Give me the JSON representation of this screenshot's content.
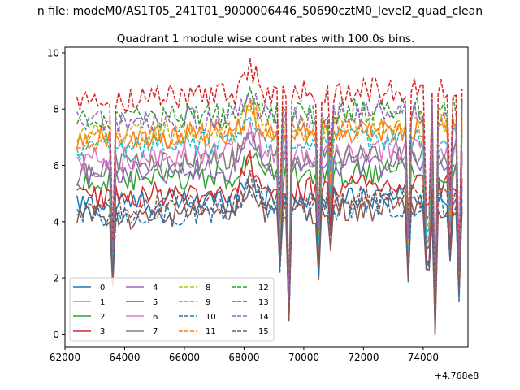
{
  "chart_data": {
    "type": "line",
    "suptitle": "n file: modeM0/AS1T05_241T01_9000006446_50690cztM0_level2_quad_clean",
    "title": "Quadrant 1 module wise count rates with 100.0s bins.",
    "xlabel": "",
    "ylabel": "",
    "x_offset_label": "+4.768e8",
    "xlim": [
      62000,
      75500
    ],
    "ylim": [
      -0.45,
      10.2
    ],
    "x_ticks": [
      62000,
      64000,
      66000,
      68000,
      70000,
      72000,
      74000
    ],
    "x_tick_labels": [
      "62000",
      "64000",
      "66000",
      "68000",
      "70000",
      "72000",
      "74000"
    ],
    "y_ticks": [
      0,
      2,
      4,
      6,
      8,
      10
    ],
    "y_tick_labels": [
      "0",
      "2",
      "4",
      "6",
      "8",
      "10"
    ],
    "x_start": 62400,
    "x_step": 100,
    "legend_position": "lower-left",
    "legend_columns": 4,
    "colors": [
      "#1f77b4",
      "#ff7f0e",
      "#2ca02c",
      "#d62728",
      "#9467bd",
      "#8c564b",
      "#e377c2",
      "#7f7f7f",
      "#bcbd22",
      "#17becf"
    ],
    "dips": [
      {
        "x": 63600,
        "depth": 0.4
      },
      {
        "x": 69200,
        "depth": 0.55
      },
      {
        "x": 69500,
        "depth": 0.12
      },
      {
        "x": 70500,
        "depth": 0.5
      },
      {
        "x": 70900,
        "depth": 0.75
      },
      {
        "x": 73500,
        "depth": 0.45
      },
      {
        "x": 74150,
        "depth": 0.55
      },
      {
        "x": 74400,
        "depth": 0.02
      },
      {
        "x": 74900,
        "depth": 0.6
      },
      {
        "x": 75200,
        "depth": 0.3
      }
    ],
    "series": [
      {
        "name": "0",
        "dashed": false,
        "level": 4.6
      },
      {
        "name": "1",
        "dashed": false,
        "level": 6.9
      },
      {
        "name": "2",
        "dashed": false,
        "level": 5.4
      },
      {
        "name": "3",
        "dashed": false,
        "level": 4.9
      },
      {
        "name": "4",
        "dashed": false,
        "level": 5.7
      },
      {
        "name": "5",
        "dashed": false,
        "level": 4.1
      },
      {
        "name": "6",
        "dashed": false,
        "level": 6.2
      },
      {
        "name": "7",
        "dashed": false,
        "level": 6.0
      },
      {
        "name": "8",
        "dashed": true,
        "level": 7.1
      },
      {
        "name": "9",
        "dashed": true,
        "level": 6.6
      },
      {
        "name": "10",
        "dashed": true,
        "level": 4.2
      },
      {
        "name": "11",
        "dashed": true,
        "level": 7.0
      },
      {
        "name": "12",
        "dashed": true,
        "level": 7.6
      },
      {
        "name": "13",
        "dashed": true,
        "level": 8.3
      },
      {
        "name": "14",
        "dashed": true,
        "level": 7.5
      },
      {
        "name": "15",
        "dashed": true,
        "level": 4.5
      }
    ]
  }
}
